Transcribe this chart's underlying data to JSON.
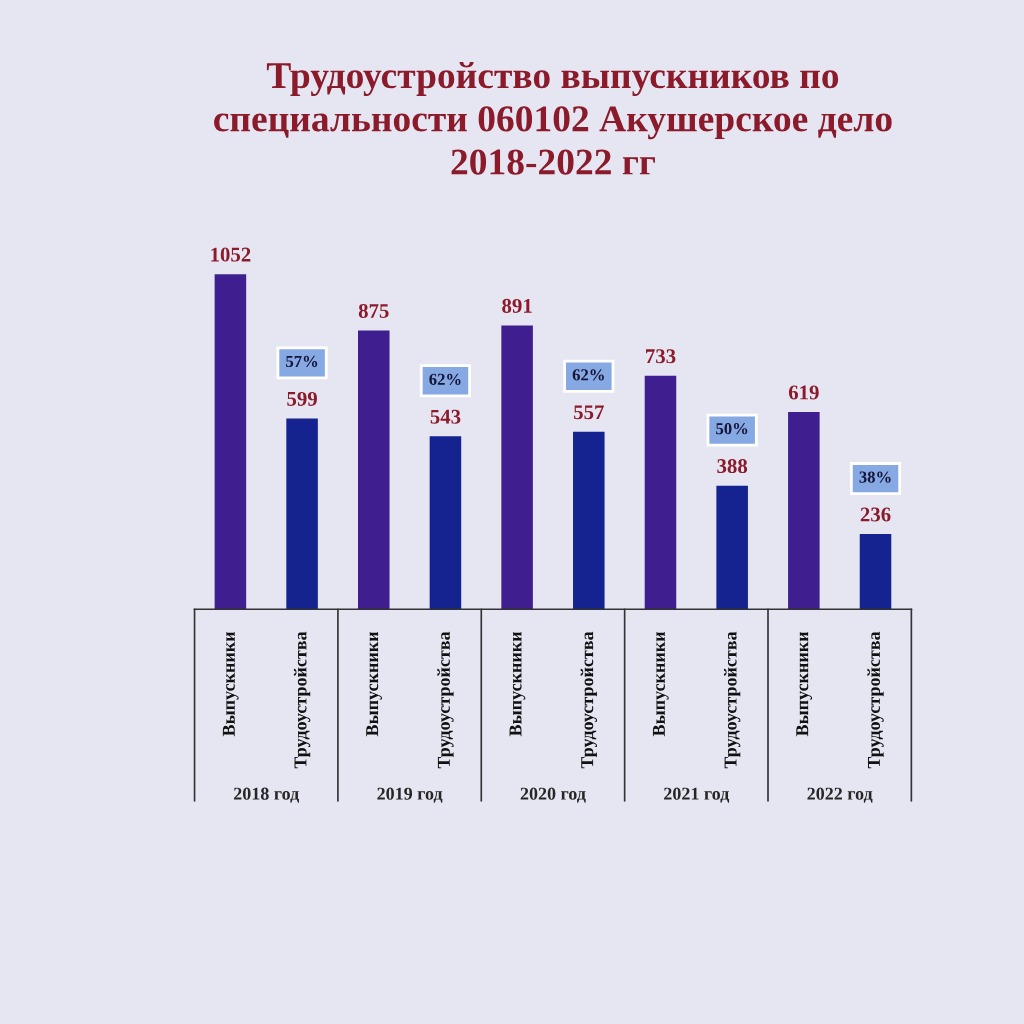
{
  "chart_data": {
    "type": "bar",
    "title": "Трудоустройство выпускников по\nспециальности 060102 Акушерское дело\n2018-2022 гг",
    "categories": [
      "2018 год",
      "2019 год",
      "2020 год",
      "2021 год",
      "2022 год"
    ],
    "series": [
      {
        "name": "Выпускники",
        "color": "#3f1f8f",
        "values": [
          1052,
          875,
          891,
          733,
          619
        ]
      },
      {
        "name": "Трудоустройства",
        "color": "#14238f",
        "values": [
          599,
          543,
          557,
          388,
          236
        ]
      }
    ],
    "data_labels": true,
    "annotations": [
      "57%",
      "62%",
      "62%",
      "50%",
      "38%"
    ]
  }
}
